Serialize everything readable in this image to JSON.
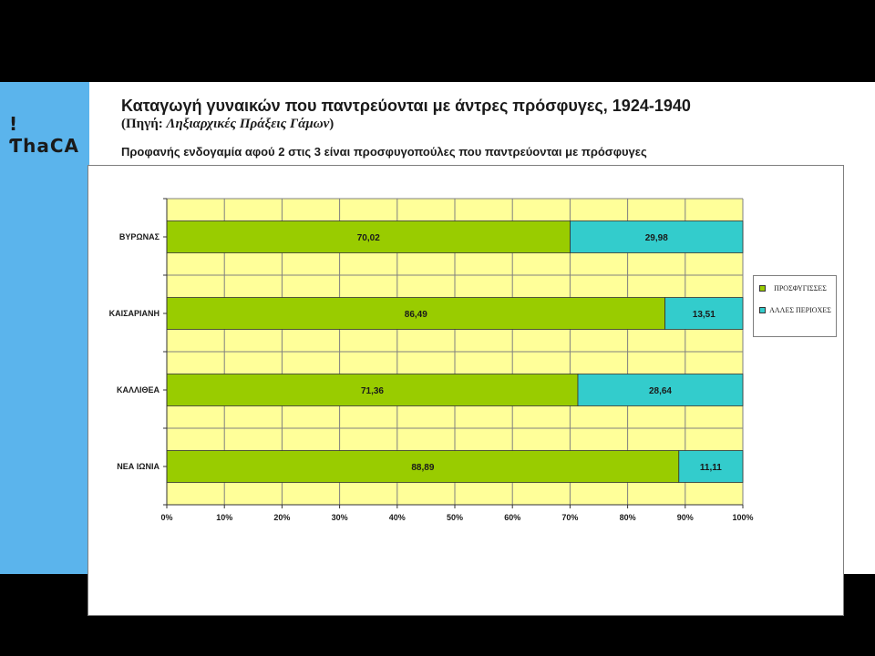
{
  "slide": {
    "logo_text": "!ƬhaCA",
    "title": "Καταγωγή γυναικών που παντρεύονται με άντρες πρόσφυγες, 1924-1940",
    "source_prefix": "(Πηγή: ",
    "source_title": "Ληξιαρχικές Πράξεις Γάμων",
    "source_suffix": ")",
    "subtitle": "Προφανής ενδογαμία αφού 2 στις 3 είναι προσφυγοπούλες που παντρεύονται με πρόσφυγες"
  },
  "colors": {
    "side_band": "#5bb4ec",
    "plot_background": "#ffff99",
    "grid": "#808080",
    "series_1": "#99cc00",
    "series_2": "#33cccc"
  },
  "chart_data": {
    "type": "bar",
    "orientation": "horizontal",
    "stacked": "percent",
    "categories": [
      "ΒΥΡΩΝΑΣ",
      "ΚΑΙΣΑΡΙΑΝΗ",
      "ΚΑΛΛΙΘΕΑ",
      "ΝΕΑ ΙΩΝΙΑ"
    ],
    "series": [
      {
        "name": "ΠΡΟΣΦΥΓΙΣΣΕΣ",
        "values": [
          70.02,
          86.49,
          71.36,
          88.89
        ],
        "labels": [
          "70,02",
          "86,49",
          "71,36",
          "88,89"
        ]
      },
      {
        "name": "ΑΛΛΕΣ ΠΕΡΙΟΧΕΣ",
        "values": [
          29.98,
          13.51,
          28.64,
          11.11
        ],
        "labels": [
          "29,98",
          "13,51",
          "28,64",
          "11,11"
        ]
      }
    ],
    "xlim": [
      0,
      100
    ],
    "x_ticks": [
      "0%",
      "10%",
      "20%",
      "30%",
      "40%",
      "50%",
      "60%",
      "70%",
      "80%",
      "90%",
      "100%"
    ],
    "grid": true,
    "legend_position": "right"
  }
}
